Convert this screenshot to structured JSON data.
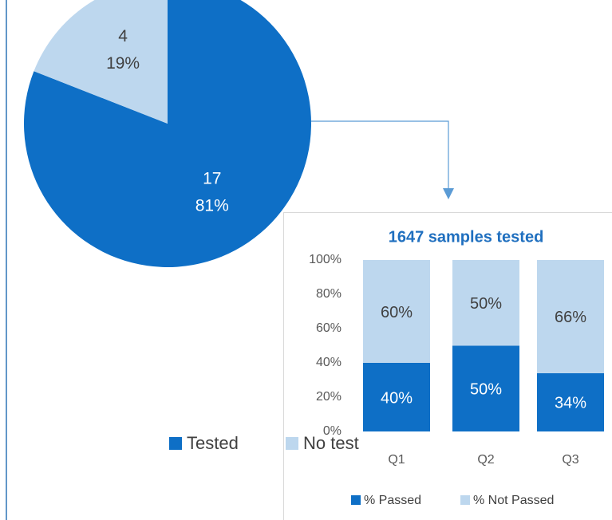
{
  "chart_data": [
    {
      "type": "pie",
      "categories": [
        "Tested",
        "No test"
      ],
      "values": [
        17,
        4
      ],
      "percent_labels": [
        "81%",
        "19%"
      ],
      "colors": [
        "#0e6fc6",
        "#bdd7ee"
      ],
      "legend": "bottom"
    },
    {
      "type": "stacked-bar",
      "title": "1647 samples tested",
      "categories": [
        "Q1",
        "Q2",
        "Q3"
      ],
      "series": [
        {
          "name": "% Passed",
          "color": "#0e6fc6",
          "values": [
            40,
            50,
            34
          ],
          "value_labels": [
            "40%",
            "50%",
            "34%"
          ]
        },
        {
          "name": "% Not Passed",
          "color": "#bdd7ee",
          "values": [
            60,
            50,
            66
          ],
          "value_labels": [
            "60%",
            "50%",
            "66%"
          ]
        }
      ],
      "ylim": [
        0,
        100
      ],
      "yticks": [
        {
          "value": 0,
          "label": "0%"
        },
        {
          "value": 20,
          "label": "20%"
        },
        {
          "value": 40,
          "label": "40%"
        },
        {
          "value": 60,
          "label": "60%"
        },
        {
          "value": 80,
          "label": "80%"
        },
        {
          "value": 100,
          "label": "100%"
        }
      ],
      "legend": "bottom"
    }
  ]
}
